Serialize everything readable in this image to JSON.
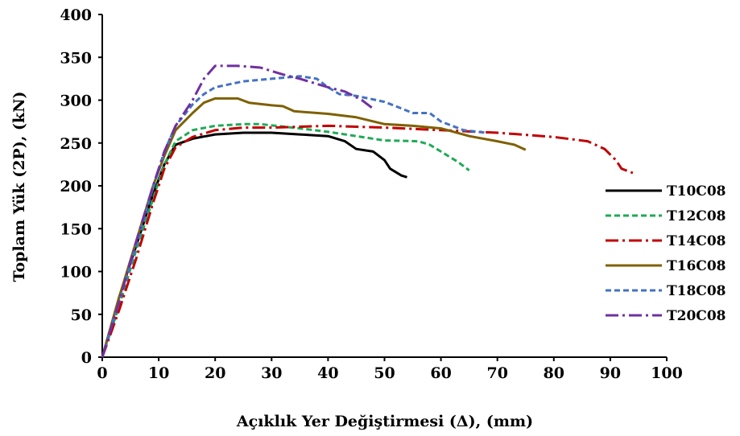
{
  "chart_data": {
    "type": "line",
    "title": "",
    "xlabel": "Açıklık Yer Değiştirmesi (Δ),   (mm)",
    "ylabel": "Toplam Yük (2P),   (kN)",
    "xlim": [
      0,
      100
    ],
    "ylim": [
      0,
      400
    ],
    "xticks": [
      "0",
      "10",
      "20",
      "30",
      "40",
      "50",
      "60",
      "70",
      "80",
      "90",
      "100"
    ],
    "yticks": [
      "0",
      "50",
      "100",
      "150",
      "200",
      "250",
      "300",
      "350",
      "400"
    ],
    "grid": false,
    "legend_position": "right",
    "series": [
      {
        "name": "T10C08",
        "color": "#000000",
        "dash": "solid",
        "points": [
          [
            0,
            0
          ],
          [
            3,
            70
          ],
          [
            6,
            130
          ],
          [
            9,
            190
          ],
          [
            11,
            225
          ],
          [
            13,
            248
          ],
          [
            16,
            255
          ],
          [
            20,
            260
          ],
          [
            25,
            262
          ],
          [
            30,
            262
          ],
          [
            35,
            260
          ],
          [
            40,
            258
          ],
          [
            43,
            252
          ],
          [
            45,
            243
          ],
          [
            48,
            240
          ],
          [
            50,
            230
          ],
          [
            51,
            220
          ],
          [
            53,
            212
          ],
          [
            54,
            210
          ]
        ]
      },
      {
        "name": "T12C08",
        "color": "#1faa55",
        "dash": "short",
        "points": [
          [
            0,
            0
          ],
          [
            3,
            60
          ],
          [
            6,
            125
          ],
          [
            9,
            185
          ],
          [
            11,
            225
          ],
          [
            13,
            252
          ],
          [
            16,
            265
          ],
          [
            20,
            270
          ],
          [
            25,
            272
          ],
          [
            28,
            272
          ],
          [
            35,
            267
          ],
          [
            40,
            263
          ],
          [
            45,
            258
          ],
          [
            50,
            253
          ],
          [
            56,
            252
          ],
          [
            58,
            248
          ],
          [
            60,
            240
          ],
          [
            63,
            228
          ],
          [
            65,
            218
          ]
        ]
      },
      {
        "name": "T14C08",
        "color": "#c00000",
        "dash": "dashdot",
        "points": [
          [
            0,
            0
          ],
          [
            3,
            55
          ],
          [
            6,
            115
          ],
          [
            9,
            180
          ],
          [
            11,
            220
          ],
          [
            13,
            245
          ],
          [
            16,
            257
          ],
          [
            20,
            265
          ],
          [
            25,
            268
          ],
          [
            30,
            268
          ],
          [
            40,
            270
          ],
          [
            50,
            268
          ],
          [
            60,
            265
          ],
          [
            70,
            262
          ],
          [
            80,
            257
          ],
          [
            86,
            252
          ],
          [
            89,
            243
          ],
          [
            91,
            230
          ],
          [
            92,
            220
          ],
          [
            94,
            215
          ]
        ]
      },
      {
        "name": "T16C08",
        "color": "#7f6000",
        "dash": "solid",
        "points": [
          [
            0,
            0
          ],
          [
            3,
            70
          ],
          [
            6,
            135
          ],
          [
            9,
            200
          ],
          [
            11,
            235
          ],
          [
            13,
            265
          ],
          [
            16,
            285
          ],
          [
            18,
            297
          ],
          [
            20,
            302
          ],
          [
            24,
            302
          ],
          [
            26,
            297
          ],
          [
            30,
            294
          ],
          [
            32,
            293
          ],
          [
            34,
            287
          ],
          [
            40,
            284
          ],
          [
            45,
            280
          ],
          [
            50,
            272
          ],
          [
            55,
            270
          ],
          [
            60,
            267
          ],
          [
            65,
            258
          ],
          [
            70,
            252
          ],
          [
            73,
            248
          ],
          [
            75,
            242
          ]
        ]
      },
      {
        "name": "T18C08",
        "color": "#4472c4",
        "dash": "short",
        "points": [
          [
            0,
            0
          ],
          [
            3,
            65
          ],
          [
            6,
            130
          ],
          [
            9,
            198
          ],
          [
            11,
            240
          ],
          [
            13,
            270
          ],
          [
            16,
            295
          ],
          [
            18,
            307
          ],
          [
            20,
            315
          ],
          [
            25,
            322
          ],
          [
            30,
            325
          ],
          [
            35,
            328
          ],
          [
            38,
            325
          ],
          [
            40,
            315
          ],
          [
            42,
            307
          ],
          [
            45,
            305
          ],
          [
            50,
            298
          ],
          [
            52,
            293
          ],
          [
            55,
            285
          ],
          [
            58,
            285
          ],
          [
            60,
            275
          ],
          [
            64,
            265
          ],
          [
            68,
            262
          ]
        ]
      },
      {
        "name": "T20C08",
        "color": "#7030a0",
        "dash": "dashdot",
        "points": [
          [
            0,
            0
          ],
          [
            3,
            65
          ],
          [
            6,
            135
          ],
          [
            9,
            200
          ],
          [
            11,
            240
          ],
          [
            13,
            270
          ],
          [
            16,
            300
          ],
          [
            18,
            325
          ],
          [
            20,
            340
          ],
          [
            24,
            340
          ],
          [
            28,
            338
          ],
          [
            32,
            330
          ],
          [
            35,
            325
          ],
          [
            40,
            315
          ],
          [
            43,
            310
          ],
          [
            46,
            300
          ],
          [
            48,
            290
          ]
        ]
      }
    ]
  }
}
